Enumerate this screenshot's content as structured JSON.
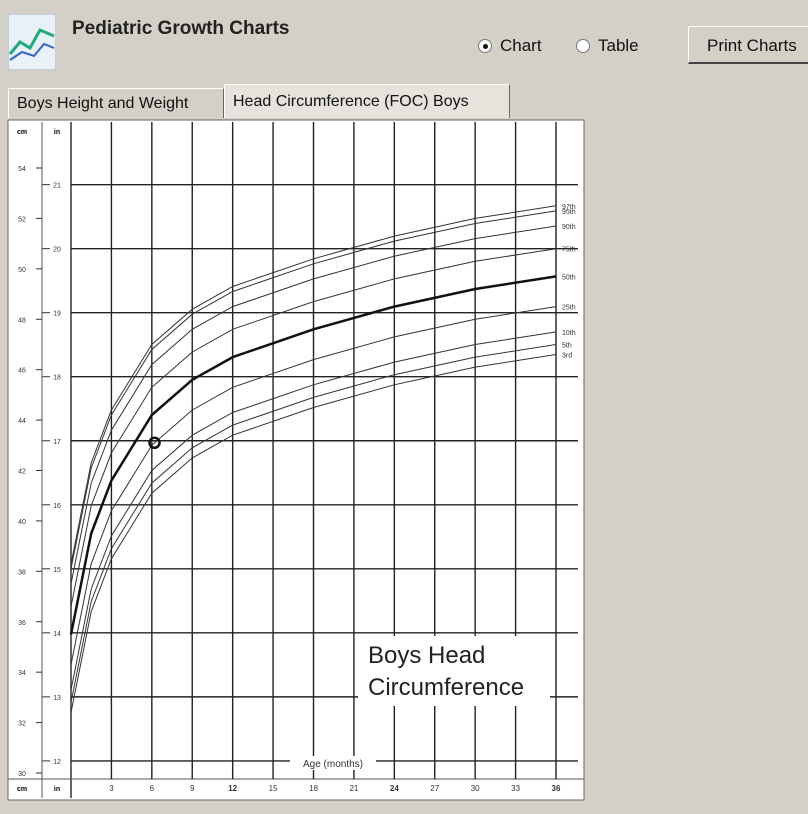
{
  "header": {
    "title": "Pediatric Growth Charts"
  },
  "view_options": {
    "options": [
      "Chart",
      "Table"
    ],
    "selected": "Chart"
  },
  "print_button": "Print Charts",
  "tabs": [
    "Boys Height and Weight",
    "Head Circumference (FOC) Boys"
  ],
  "active_tab": 1,
  "chart_data": {
    "type": "line",
    "y_unit_label": "cm",
    "y2_unit_label": "in",
    "xlabel": "Age (months)",
    "annotation": "Boys Head Circumference",
    "x": [
      0,
      1.5,
      3,
      6,
      9,
      12,
      18,
      24,
      30,
      36
    ],
    "series": [
      {
        "name": "97th",
        "color": "#333333",
        "line_width": 1,
        "values": [
          38.3,
          42.3,
          44.4,
          47.0,
          48.4,
          49.3,
          50.4,
          51.3,
          52.0,
          52.5
        ]
      },
      {
        "name": "95th",
        "color": "#333333",
        "line_width": 1,
        "values": [
          38.1,
          42.1,
          44.2,
          46.8,
          48.2,
          49.1,
          50.2,
          51.1,
          51.8,
          52.3
        ]
      },
      {
        "name": "90th",
        "color": "#333333",
        "line_width": 1,
        "values": [
          37.5,
          41.5,
          43.6,
          46.2,
          47.6,
          48.5,
          49.6,
          50.5,
          51.2,
          51.7
        ]
      },
      {
        "name": "75th",
        "color": "#333333",
        "line_width": 1,
        "values": [
          36.6,
          40.6,
          42.7,
          45.3,
          46.7,
          47.6,
          48.7,
          49.6,
          50.3,
          50.8
        ]
      },
      {
        "name": "50th",
        "color": "#111111",
        "line_width": 2.5,
        "values": [
          35.5,
          39.5,
          41.6,
          44.2,
          45.6,
          46.5,
          47.6,
          48.5,
          49.2,
          49.7
        ]
      },
      {
        "name": "25th",
        "color": "#333333",
        "line_width": 1,
        "values": [
          34.3,
          38.3,
          40.4,
          43.0,
          44.4,
          45.3,
          46.4,
          47.3,
          48.0,
          48.5
        ]
      },
      {
        "name": "10th",
        "color": "#333333",
        "line_width": 1,
        "values": [
          33.3,
          37.3,
          39.4,
          42.0,
          43.4,
          44.3,
          45.4,
          46.3,
          47.0,
          47.5
        ]
      },
      {
        "name": "5th",
        "color": "#333333",
        "line_width": 1,
        "values": [
          32.8,
          36.8,
          38.9,
          41.5,
          42.9,
          43.8,
          44.9,
          45.8,
          46.5,
          47.0
        ]
      },
      {
        "name": "3rd",
        "color": "#333333",
        "line_width": 1,
        "values": [
          32.4,
          36.4,
          38.5,
          41.1,
          42.5,
          43.4,
          44.5,
          45.4,
          46.1,
          46.6
        ]
      }
    ],
    "point": {
      "x": 6.2,
      "y": 43.1
    },
    "xlim": [
      0,
      36
    ],
    "xticks": [
      3,
      6,
      9,
      12,
      15,
      18,
      21,
      24,
      27,
      30,
      33,
      36
    ],
    "ylim": [
      30,
      54
    ],
    "yticks": [
      30,
      32,
      34,
      36,
      38,
      40,
      42,
      44,
      46,
      48,
      50,
      52,
      54
    ],
    "y2lim": [
      11.811,
      21.26
    ],
    "y2ticks": [
      12,
      13,
      14,
      15,
      16,
      17,
      18,
      19,
      20,
      21
    ],
    "grid": true
  }
}
